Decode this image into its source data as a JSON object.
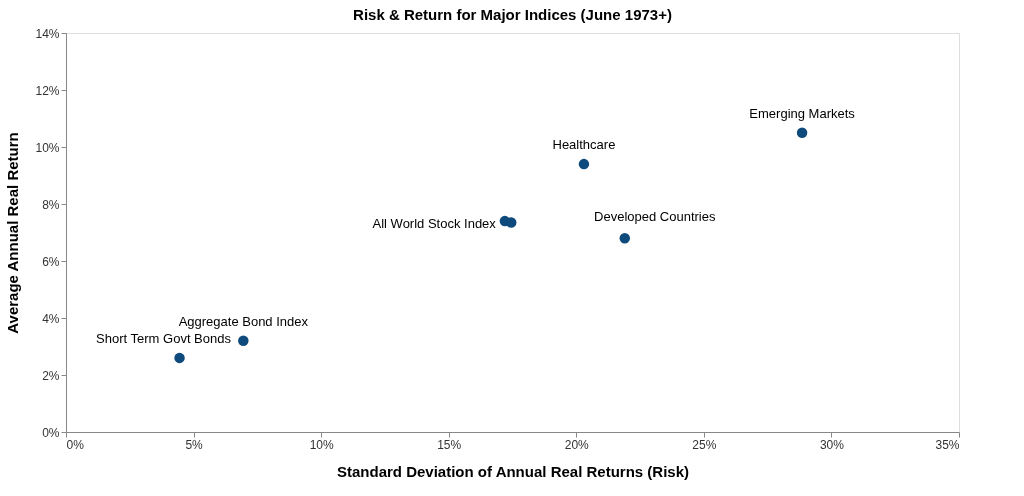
{
  "chart_data": {
    "type": "scatter",
    "title": "Risk & Return for Major Indices (June 1973+)",
    "xlabel": "Standard Deviation of Annual Real Returns (Risk)",
    "ylabel": "Average Annual Real Return",
    "x": [
      4.45,
      6.95,
      17.2,
      17.45,
      20.3,
      21.9,
      28.85
    ],
    "series": [
      {
        "color": "#0e4a7b",
        "values": [
          2.6,
          3.2,
          7.4,
          7.35,
          9.4,
          6.8,
          10.5
        ]
      }
    ],
    "marker": "circle",
    "grid": false,
    "xlim": [
      0,
      35
    ],
    "xticks": [
      {
        "value": 0,
        "label": "0%"
      },
      {
        "value": 5,
        "label": "5%"
      },
      {
        "value": 10,
        "label": "10%"
      },
      {
        "value": 15,
        "label": "15%"
      },
      {
        "value": 20,
        "label": "20%"
      },
      {
        "value": 25,
        "label": "25%"
      },
      {
        "value": 30,
        "label": "30%"
      },
      {
        "value": 35,
        "label": "35%"
      }
    ],
    "ylim": [
      0,
      14
    ],
    "yticks": [
      {
        "value": 0,
        "label": "0%"
      },
      {
        "value": 2,
        "label": "2%"
      },
      {
        "value": 4,
        "label": "4%"
      },
      {
        "value": 6,
        "label": "6%"
      },
      {
        "value": 8,
        "label": "8%"
      },
      {
        "value": 10,
        "label": "10%"
      },
      {
        "value": 12,
        "label": "12%"
      },
      {
        "value": 14,
        "label": "14%"
      }
    ],
    "annotations": [
      {
        "text": "Short Term Govt Bonds",
        "x": 4.45,
        "y": 2.6
      },
      {
        "text": "Aggregate Bond Index",
        "x": 6.95,
        "y": 3.2
      },
      {
        "text": "All World Stock Index",
        "x": 17.2,
        "y": 7.4
      },
      {
        "text": "Healthcare",
        "x": 20.3,
        "y": 9.4
      },
      {
        "text": "Developed Countries",
        "x": 21.9,
        "y": 6.8
      },
      {
        "text": "Emerging Markets",
        "x": 28.85,
        "y": 10.5
      }
    ]
  }
}
